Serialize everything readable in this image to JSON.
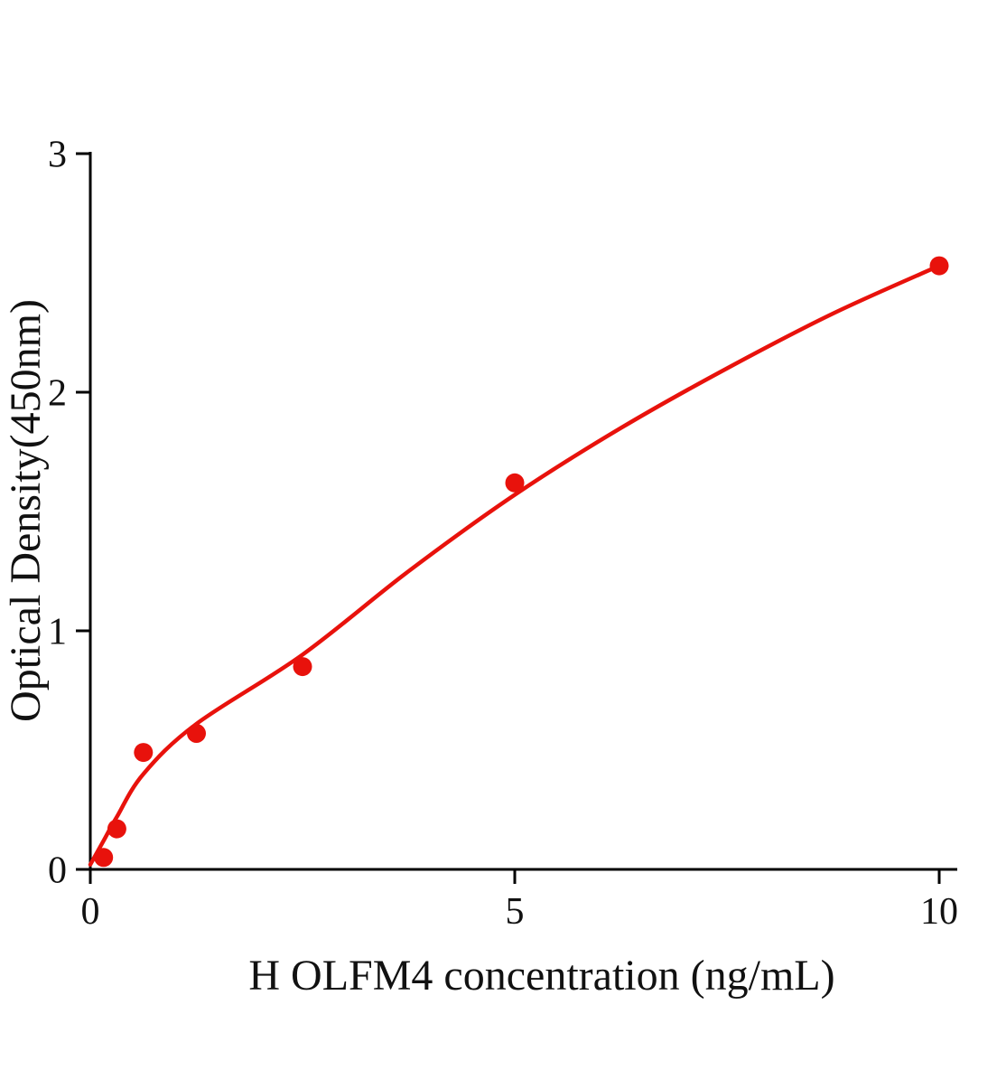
{
  "chart_data": {
    "type": "scatter",
    "title": "",
    "xlabel": "H OLFM4 concentration (ng/mL)",
    "ylabel": "Optical Density(450nm)",
    "xlim": [
      0,
      10
    ],
    "ylim": [
      0,
      3
    ],
    "x_ticks": [
      0,
      5,
      10
    ],
    "y_ticks": [
      0,
      1,
      2,
      3
    ],
    "grid": false,
    "legend": false,
    "axis_color": "#000000",
    "point_color": "#e8120c",
    "curve_color": "#e8120c",
    "points": [
      {
        "x": 0.156,
        "y": 0.05
      },
      {
        "x": 0.3125,
        "y": 0.17
      },
      {
        "x": 0.625,
        "y": 0.49
      },
      {
        "x": 1.25,
        "y": 0.57
      },
      {
        "x": 2.5,
        "y": 0.85
      },
      {
        "x": 5,
        "y": 1.62
      },
      {
        "x": 10,
        "y": 2.53
      }
    ],
    "fit_curve": [
      {
        "x": 0,
        "y": 0.02
      },
      {
        "x": 0.156,
        "y": 0.12
      },
      {
        "x": 0.3125,
        "y": 0.22
      },
      {
        "x": 0.625,
        "y": 0.4
      },
      {
        "x": 1.25,
        "y": 0.61
      },
      {
        "x": 2.5,
        "y": 0.9
      },
      {
        "x": 3.75,
        "y": 1.25
      },
      {
        "x": 5,
        "y": 1.57
      },
      {
        "x": 6.25,
        "y": 1.85
      },
      {
        "x": 7.5,
        "y": 2.1
      },
      {
        "x": 8.75,
        "y": 2.33
      },
      {
        "x": 10,
        "y": 2.53
      }
    ]
  }
}
